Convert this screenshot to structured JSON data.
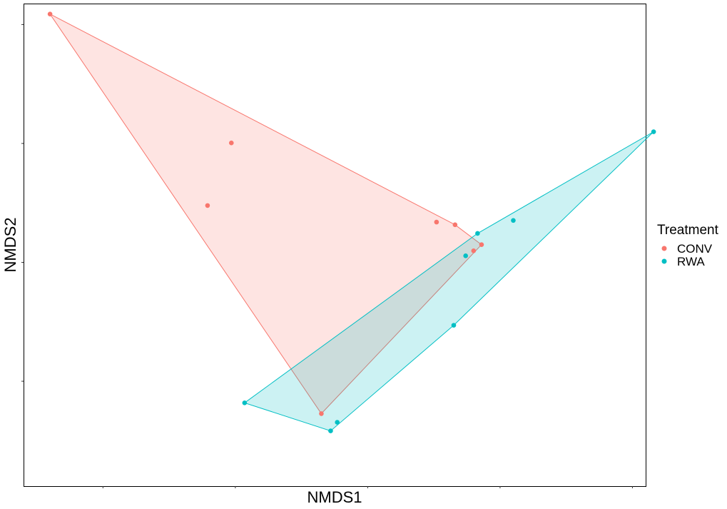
{
  "chart_data": {
    "type": "scatter",
    "xlabel": "NMDS1",
    "ylabel": "NMDS2",
    "xlim": [
      -0.3,
      0.17
    ],
    "ylim": [
      -0.55,
      0.83
    ],
    "x_ticks": [
      -0.24,
      -0.14,
      -0.04,
      0.06,
      0.16
    ],
    "y_ticks": [
      -0.25,
      0.09,
      0.43,
      0.77
    ],
    "grid": false,
    "hulls": true,
    "legend": {
      "title": "Treatment",
      "position": "right",
      "entries": [
        {
          "label": "CONV",
          "color": "#F8766D"
        },
        {
          "label": "RWA",
          "color": "#00BFC4"
        }
      ]
    },
    "series": [
      {
        "name": "CONV",
        "color": "#F8766D",
        "points": [
          {
            "x": -0.28,
            "y": 0.8
          },
          {
            "x": -0.143,
            "y": 0.4315
          },
          {
            "x": -0.161,
            "y": 0.2525
          },
          {
            "x": 0.012,
            "y": 0.2051
          },
          {
            "x": 0.026,
            "y": 0.1975
          },
          {
            "x": 0.046,
            "y": 0.1407
          },
          {
            "x": 0.04,
            "y": 0.1231
          },
          {
            "x": -0.075,
            "y": -0.3426
          }
        ]
      },
      {
        "name": "RWA",
        "color": "#00BFC4",
        "points": [
          {
            "x": 0.176,
            "y": 0.4635
          },
          {
            "x": 0.07,
            "y": 0.2098
          },
          {
            "x": 0.043,
            "y": 0.1728
          },
          {
            "x": 0.034,
            "y": 0.1087
          },
          {
            "x": 0.025,
            "y": -0.0899
          },
          {
            "x": -0.133,
            "y": -0.3118
          },
          {
            "x": -0.068,
            "y": -0.392
          },
          {
            "x": -0.063,
            "y": -0.3673
          }
        ]
      }
    ]
  }
}
